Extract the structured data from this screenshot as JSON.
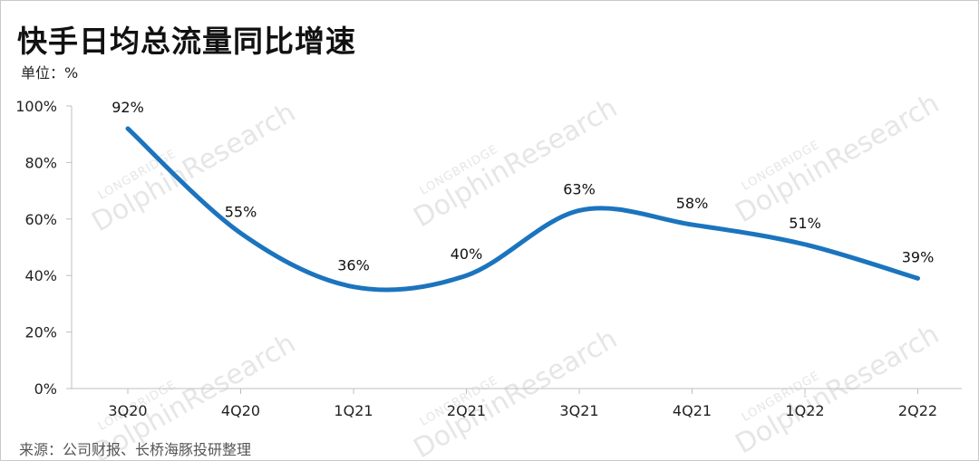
{
  "header": {
    "title": "快手日均总流量同比增速",
    "unit": "单位：%"
  },
  "footer": {
    "source": "来源：公司财报、长桥海豚投研整理"
  },
  "watermark": {
    "brand": "LONGBRIDGE",
    "name": "DolphinResearch"
  },
  "chart_data": {
    "type": "line",
    "categories": [
      "3Q20",
      "4Q20",
      "1Q21",
      "2Q21",
      "3Q21",
      "4Q21",
      "1Q22",
      "2Q22"
    ],
    "series": [
      {
        "values": [
          92,
          55,
          36,
          40,
          63,
          58,
          51,
          39
        ],
        "color": "#1b74be"
      }
    ],
    "data_labels": [
      "92%",
      "55%",
      "36%",
      "40%",
      "63%",
      "58%",
      "51%",
      "39%"
    ],
    "y_ticks": [
      "0%",
      "20%",
      "40%",
      "60%",
      "80%",
      "100%"
    ],
    "ylim": [
      0,
      100
    ],
    "smooth": true,
    "grid": false,
    "legend": "none"
  }
}
